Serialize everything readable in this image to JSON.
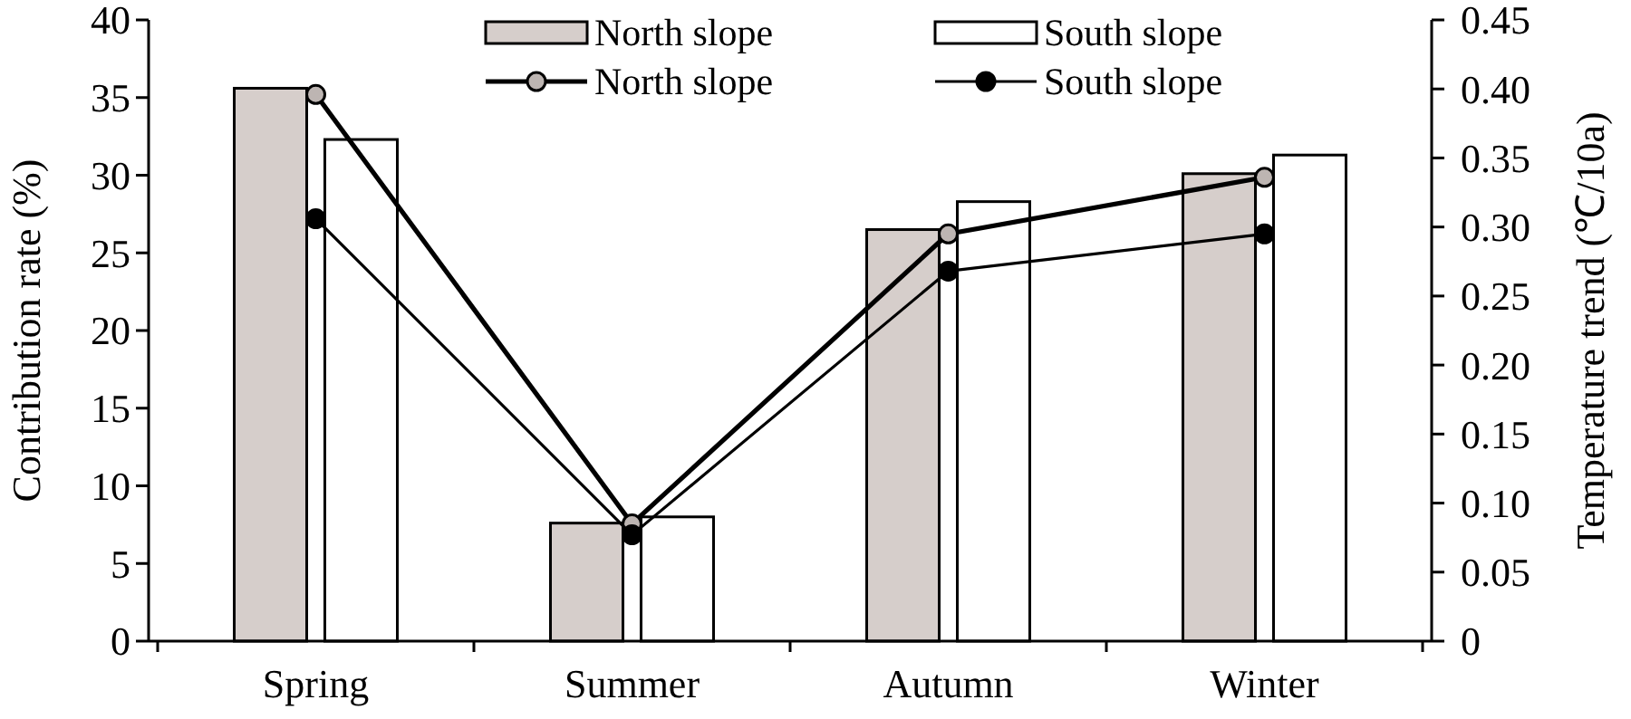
{
  "chart_data": {
    "type": "bar",
    "categories": [
      "Spring",
      "Summer",
      "Autumn",
      "Winter"
    ],
    "ylabel": "Contribution rate (%)",
    "y2label": "Temperature trend (℃/10a)",
    "ylim": [
      0,
      40
    ],
    "yticks": [
      0,
      5,
      10,
      15,
      20,
      25,
      30,
      35,
      40
    ],
    "y2lim": [
      0,
      0.45
    ],
    "y2ticks": [
      {
        "value": 0,
        "label": "0"
      },
      {
        "value": 0.05,
        "label": "0.05"
      },
      {
        "value": 0.1,
        "label": "0.10"
      },
      {
        "value": 0.15,
        "label": "0.15"
      },
      {
        "value": 0.2,
        "label": "0.20"
      },
      {
        "value": 0.25,
        "label": "0.25"
      },
      {
        "value": 0.3,
        "label": "0.30"
      },
      {
        "value": 0.35,
        "label": "0.35"
      },
      {
        "value": 0.4,
        "label": "0.40"
      },
      {
        "value": 0.45,
        "label": "0.45"
      }
    ],
    "series": [
      {
        "name": "North slope",
        "color": "#d6cecb",
        "values": [
          35.6,
          7.6,
          26.5,
          30.1
        ]
      },
      {
        "name": "South slope",
        "color": "#ffffff",
        "values": [
          32.3,
          8.0,
          28.3,
          31.3
        ]
      },
      {
        "name": "North slope",
        "type": "line",
        "axis": "y2",
        "color": "#bdb5b2",
        "values": [
          0.396,
          0.085,
          0.295,
          0.336
        ]
      },
      {
        "name": "South slope",
        "type": "line",
        "axis": "y2",
        "color": "#000000",
        "values": [
          0.306,
          0.077,
          0.268,
          0.295
        ]
      }
    ],
    "marker": "circle",
    "line_style": "solid",
    "legend": "top",
    "grid": false
  }
}
